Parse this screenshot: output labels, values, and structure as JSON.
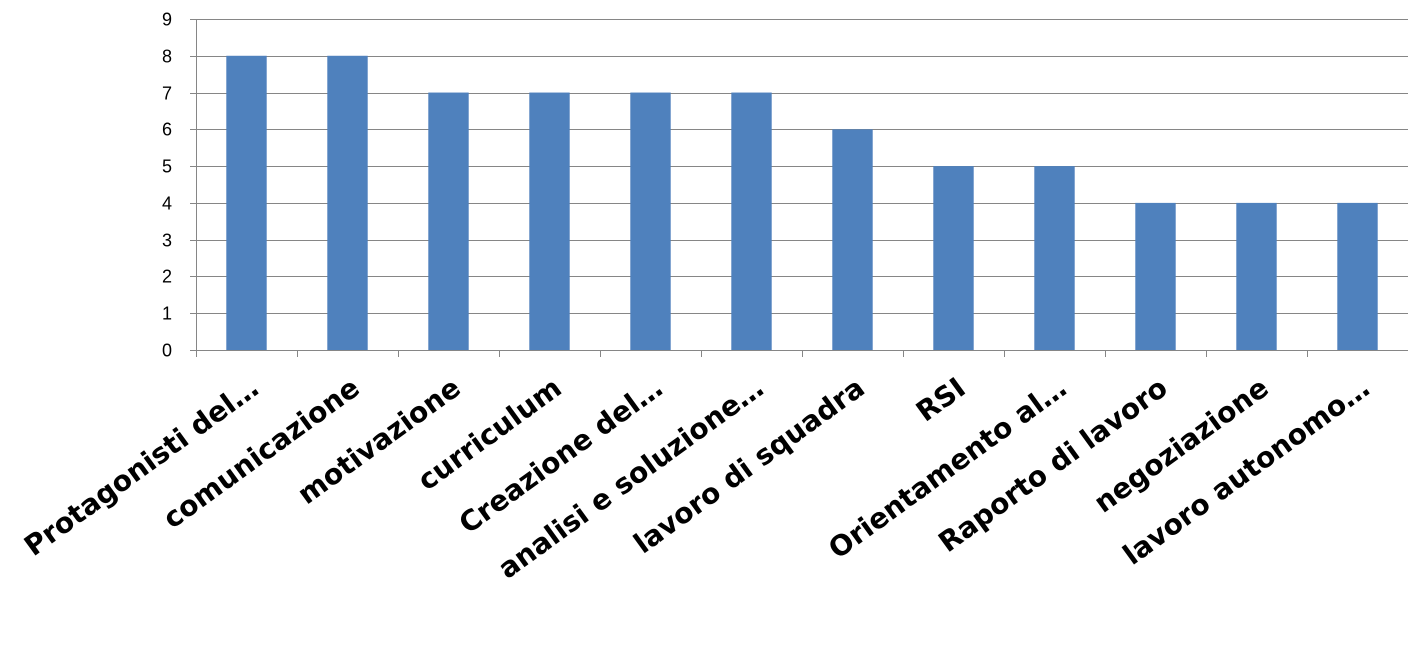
{
  "chart_data": {
    "type": "bar",
    "title": "",
    "xlabel": "",
    "ylabel": "",
    "categories": [
      "Protagonisti del…",
      "comunicazione",
      "motivazione",
      "curriculum",
      "Creazione del…",
      "analisi e soluzione…",
      "lavoro di squadra",
      "RSI",
      "Orientamento al…",
      "Raporto di lavoro",
      "negoziazione",
      "lavoro autonomo…"
    ],
    "values": [
      8,
      8,
      7,
      7,
      7,
      7,
      6,
      5,
      5,
      4,
      4,
      4
    ],
    "ylim": [
      0,
      9
    ],
    "yticks": [
      0,
      1,
      2,
      3,
      4,
      5,
      6,
      7,
      8,
      9
    ],
    "grid": true,
    "legend": "none",
    "bar_color": "#4f81bd",
    "grid_color": "#868686"
  }
}
